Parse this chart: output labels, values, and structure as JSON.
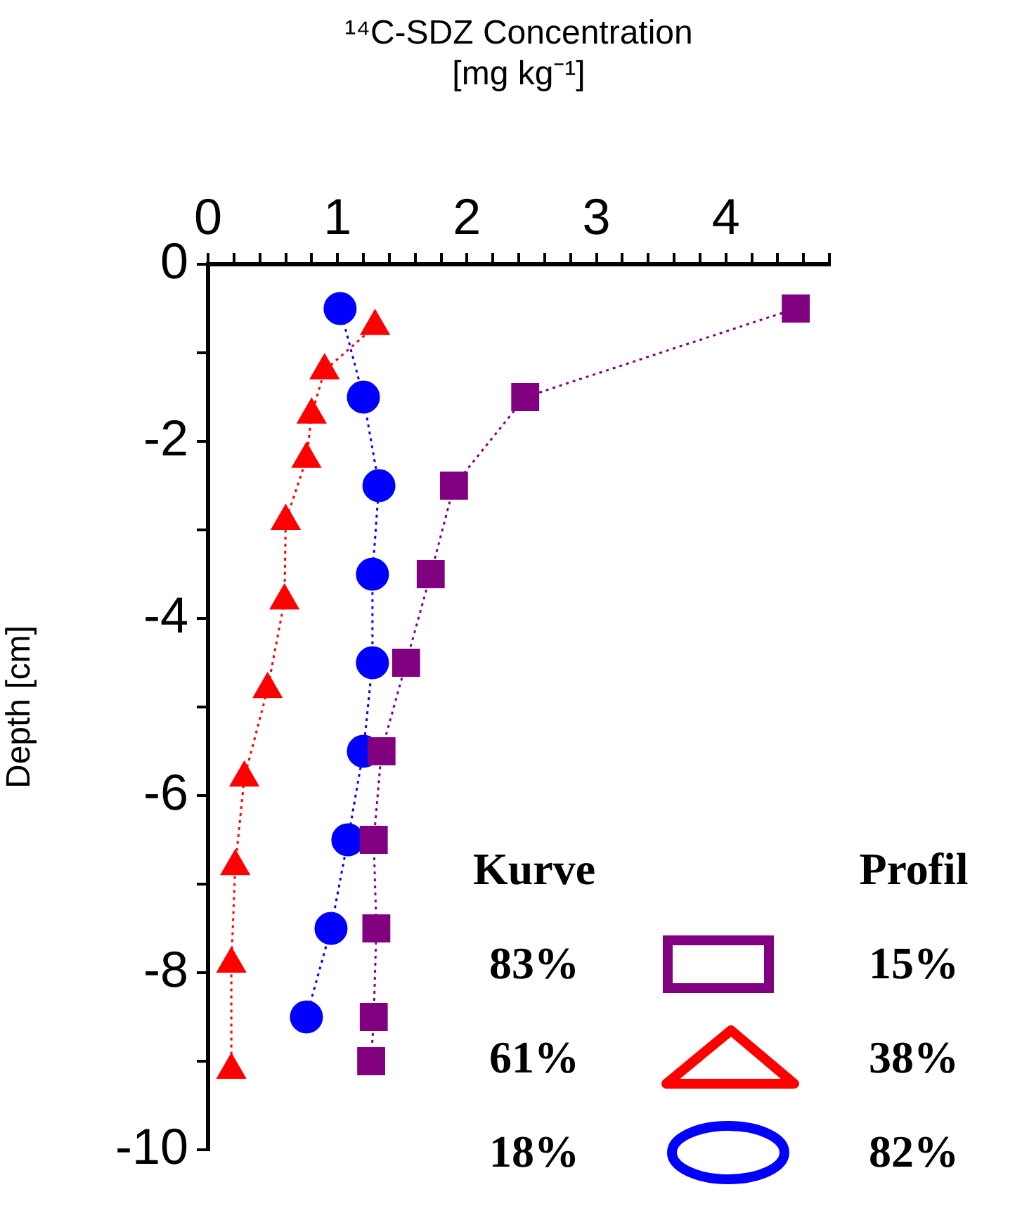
{
  "chart_data": {
    "type": "line",
    "xlabel": "¹⁴C-SDZ Concentration\n[mg kg⁻¹]",
    "ylabel": "Depth [cm]",
    "xlim": [
      0,
      4.8
    ],
    "xticks": [
      0,
      {
        "value": 0.2,
        "label": null
      },
      {
        "value": 0.4,
        "label": null
      },
      {
        "value": 0.6,
        "label": null
      },
      {
        "value": 0.8,
        "label": null
      },
      1,
      {
        "value": 1.2,
        "label": null
      },
      {
        "value": 1.4,
        "label": null
      },
      {
        "value": 1.6,
        "label": null
      },
      {
        "value": 1.8,
        "label": null
      },
      2,
      {
        "value": 2.2,
        "label": null
      },
      {
        "value": 2.4,
        "label": null
      },
      {
        "value": 2.6,
        "label": null
      },
      {
        "value": 2.8,
        "label": null
      },
      3,
      {
        "value": 3.2,
        "label": null
      },
      {
        "value": 3.4,
        "label": null
      },
      {
        "value": 3.6,
        "label": null
      },
      {
        "value": 3.8,
        "label": null
      },
      4,
      {
        "value": 4.2,
        "label": null
      },
      {
        "value": 4.4,
        "label": null
      },
      {
        "value": 4.6,
        "label": null
      },
      {
        "value": 4.8,
        "label": null
      }
    ],
    "ylim": [
      -10,
      0
    ],
    "yticks": [
      -10,
      {
        "value": -9,
        "label": null
      },
      -8,
      {
        "value": -7,
        "label": null
      },
      -6,
      {
        "value": -5,
        "label": null
      },
      -4,
      {
        "value": -3,
        "label": null
      },
      -2,
      {
        "value": -1,
        "label": null
      },
      0
    ],
    "line_style": "dotted",
    "series": [
      {
        "color": "#800080",
        "marker": "square",
        "x": [
          4.54,
          2.45,
          1.9,
          1.72,
          1.53,
          1.34,
          1.28,
          1.3,
          1.28,
          1.26
        ],
        "values": [
          -0.5,
          -1.5,
          -2.5,
          -3.5,
          -4.5,
          -5.5,
          -6.5,
          -7.5,
          -8.5,
          -9.0
        ]
      },
      {
        "color": "#ff0000",
        "marker": "triangle",
        "x": [
          1.29,
          0.9,
          0.8,
          0.76,
          0.6,
          0.59,
          0.46,
          0.28,
          0.21,
          0.18,
          0.18
        ],
        "values": [
          -0.7,
          -1.2,
          -1.7,
          -2.2,
          -2.9,
          -3.8,
          -4.8,
          -5.8,
          -6.8,
          -7.9,
          -9.1
        ]
      },
      {
        "color": "#0000ff",
        "marker": "circle",
        "x": [
          1.02,
          1.2,
          1.32,
          1.27,
          1.27,
          1.2,
          1.08,
          0.95,
          0.76
        ],
        "values": [
          -0.5,
          -1.5,
          -2.5,
          -3.5,
          -4.5,
          -5.5,
          -6.5,
          -7.5,
          -8.5
        ]
      }
    ],
    "annotations": [
      "Kurve",
      "Profil",
      "83%",
      "15%",
      "61%",
      "38%",
      "18%",
      "82%"
    ]
  }
}
